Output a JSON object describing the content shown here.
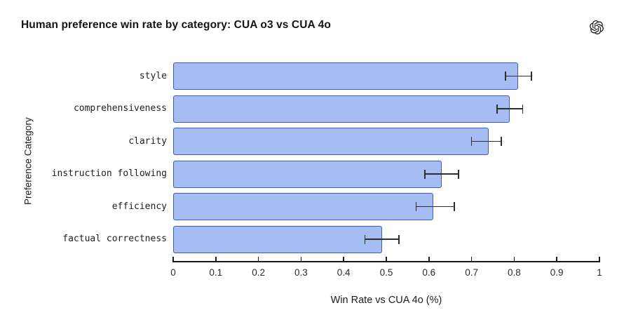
{
  "header": {
    "title": "Human preference win rate by category: CUA o3 vs CUA 4o",
    "logo": "openai-logo"
  },
  "colors": {
    "bar_fill": "#a6bdf3",
    "bar_border": "#4259c2",
    "error_bar": "#2e2e2e",
    "axis": "#1a1a1a",
    "title_text": "#141414",
    "background": "#ffffff"
  },
  "chart_data": {
    "type": "bar",
    "orientation": "horizontal",
    "title": "Human preference win rate by category: CUA o3 vs CUA 4o",
    "xlabel": "Win Rate vs CUA 4o (%)",
    "ylabel": "Preference Category",
    "xlim": [
      0,
      1
    ],
    "grid": false,
    "legend": null,
    "x_ticks": [
      0,
      0.1,
      0.2,
      0.3,
      0.4,
      0.5,
      0.6,
      0.7,
      0.8,
      0.9,
      1
    ],
    "x_tick_labels": [
      "0",
      "0.1",
      "0.2",
      "0.3",
      "0.4",
      "0.5",
      "0.6",
      "0.7",
      "0.8",
      "0.9",
      "1"
    ],
    "categories": [
      "style",
      "comprehensiveness",
      "clarity",
      "instruction following",
      "efficiency",
      "factual correctness"
    ],
    "values": [
      0.81,
      0.79,
      0.74,
      0.63,
      0.61,
      0.49
    ],
    "error_low": [
      0.78,
      0.76,
      0.7,
      0.59,
      0.57,
      0.45
    ],
    "error_high": [
      0.84,
      0.82,
      0.77,
      0.67,
      0.66,
      0.53
    ]
  }
}
